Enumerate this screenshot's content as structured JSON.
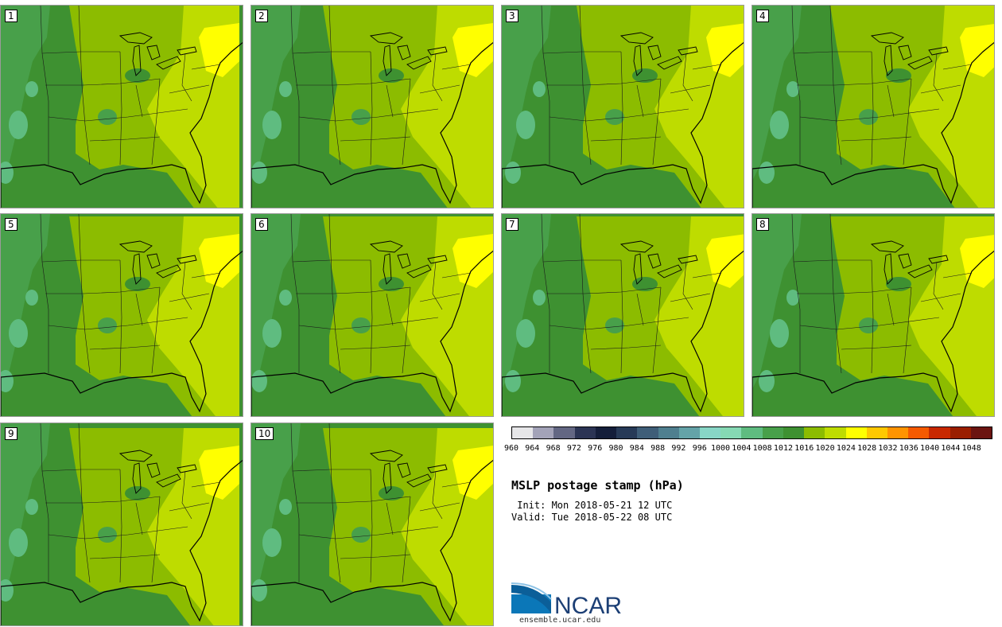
{
  "panels": [
    {
      "label": "1"
    },
    {
      "label": "2"
    },
    {
      "label": "3"
    },
    {
      "label": "4"
    },
    {
      "label": "5"
    },
    {
      "label": "6"
    },
    {
      "label": "7"
    },
    {
      "label": "8"
    },
    {
      "label": "9"
    },
    {
      "label": "10"
    }
  ],
  "colorbar": {
    "ticks": [
      "960",
      "964",
      "968",
      "972",
      "976",
      "980",
      "984",
      "988",
      "992",
      "996",
      "1000",
      "1004",
      "1008",
      "1012",
      "1016",
      "1020",
      "1024",
      "1028",
      "1032",
      "1036",
      "1040",
      "1044",
      "1048"
    ],
    "colors": [
      "#e6e6e8",
      "#a3a3b8",
      "#636783",
      "#2b3454",
      "#141e3a",
      "#273a57",
      "#3f5e78",
      "#4f7f8f",
      "#64a3a8",
      "#88d6c6",
      "#86d9b4",
      "#5fbc80",
      "#48a04a",
      "#3e9131",
      "#8cbc00",
      "#bedc00",
      "#ffff00",
      "#ffc800",
      "#ff9400",
      "#f55a00",
      "#c82800",
      "#9a1e00",
      "#6b1410"
    ]
  },
  "title": "MSLP postage stamp (hPa)",
  "init_line": " Init: Mon 2018-05-21 12 UTC",
  "valid_line": "Valid: Tue 2018-05-22 08 UTC",
  "logo": {
    "text": "NCAR",
    "url": "ensemble.ucar.edu"
  },
  "map_colors": {
    "dark_green": "#3e9131",
    "mid_green": "#48a04a",
    "teal_green": "#5fbc80",
    "lime": "#8cbc00",
    "yellow_green": "#bedc00",
    "yellow": "#ffff00"
  }
}
